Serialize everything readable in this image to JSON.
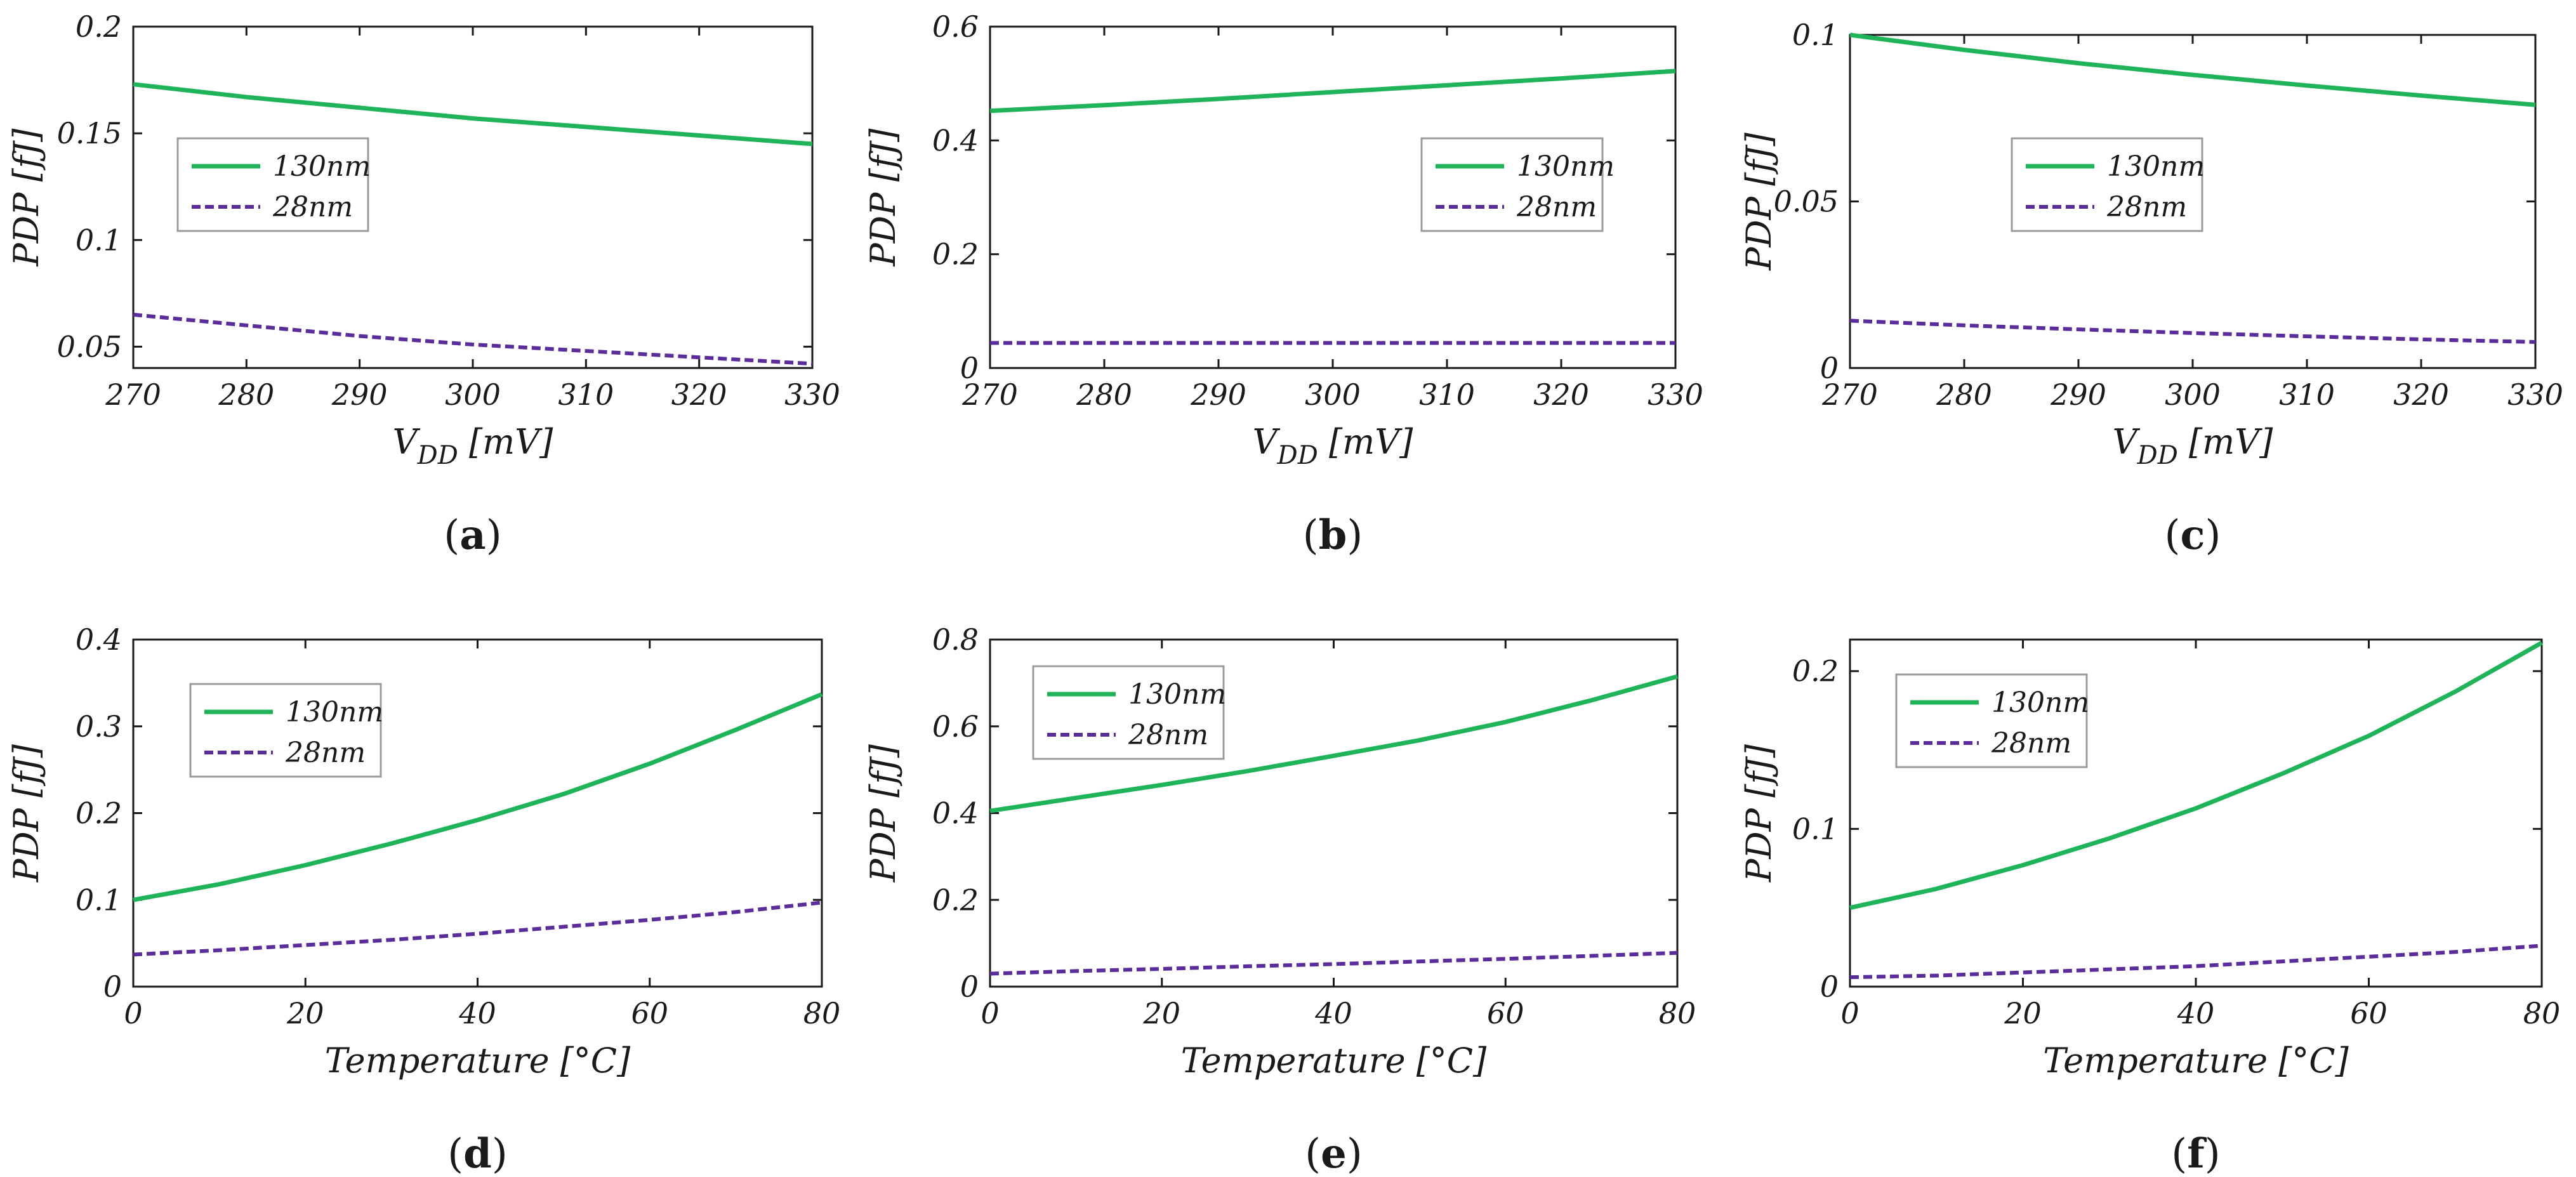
{
  "colors": {
    "series_130nm": "#1fb45a",
    "series_28nm": "#5b2d9b",
    "axis": "#1a1a1a",
    "legend_border": "#9a9a9a"
  },
  "chart_data": [
    {
      "type": "line",
      "caption": "a",
      "xlabel": "V_DD [mV]",
      "ylabel": "PDP [fJ]",
      "xlim": [
        270,
        330
      ],
      "ylim": [
        0.04,
        0.2
      ],
      "xticks": [
        270,
        280,
        290,
        300,
        310,
        320,
        330
      ],
      "yticks": [
        0.05,
        0.1,
        0.15,
        0.2
      ],
      "ytick_labels": [
        "0.05",
        "0.1",
        "0.15",
        "0.2"
      ],
      "legend_position": "upper-left",
      "x": [
        270,
        280,
        290,
        300,
        310,
        320,
        330
      ],
      "series": [
        {
          "name": "130nm",
          "values": [
            0.173,
            0.167,
            0.162,
            0.157,
            0.153,
            0.149,
            0.145
          ]
        },
        {
          "name": "28nm",
          "values": [
            0.065,
            0.06,
            0.055,
            0.051,
            0.048,
            0.045,
            0.042
          ]
        }
      ]
    },
    {
      "type": "line",
      "caption": "b",
      "xlabel": "V_DD [mV]",
      "ylabel": "PDP [fJ]",
      "xlim": [
        270,
        330
      ],
      "ylim": [
        0,
        0.6
      ],
      "xticks": [
        270,
        280,
        290,
        300,
        310,
        320,
        330
      ],
      "yticks": [
        0,
        0.2,
        0.4,
        0.6
      ],
      "ytick_labels": [
        "0",
        "0.2",
        "0.4",
        "0.6"
      ],
      "legend_position": "upper-right",
      "x": [
        270,
        280,
        290,
        300,
        310,
        320,
        330
      ],
      "series": [
        {
          "name": "130nm",
          "values": [
            0.452,
            0.462,
            0.473,
            0.485,
            0.497,
            0.509,
            0.522
          ]
        },
        {
          "name": "28nm",
          "values": [
            0.044,
            0.044,
            0.044,
            0.044,
            0.044,
            0.044,
            0.044
          ]
        }
      ]
    },
    {
      "type": "line",
      "caption": "c",
      "xlabel": "V_DD [mV]",
      "ylabel": "PDP [fJ]",
      "xlim": [
        270,
        330
      ],
      "ylim": [
        0,
        0.1
      ],
      "xticks": [
        270,
        280,
        290,
        300,
        310,
        320,
        330
      ],
      "yticks": [
        0,
        0.05,
        0.1
      ],
      "ytick_labels": [
        "0",
        "0.05",
        "0.1"
      ],
      "legend_position": "upper-center",
      "x": [
        270,
        280,
        290,
        300,
        310,
        320,
        330
      ],
      "series": [
        {
          "name": "130nm",
          "values": [
            0.1,
            0.0955,
            0.0915,
            0.088,
            0.0848,
            0.0818,
            0.079
          ]
        },
        {
          "name": "28nm",
          "values": [
            0.0142,
            0.0128,
            0.0116,
            0.0105,
            0.0095,
            0.0086,
            0.0078
          ]
        }
      ]
    },
    {
      "type": "line",
      "caption": "d",
      "xlabel": "Temperature [°C]",
      "ylabel": "PDP [fJ]",
      "xlim": [
        0,
        80
      ],
      "ylim": [
        0,
        0.4
      ],
      "xticks": [
        0,
        20,
        40,
        60,
        80
      ],
      "yticks": [
        0,
        0.1,
        0.2,
        0.3,
        0.4
      ],
      "ytick_labels": [
        "0",
        "0.1",
        "0.2",
        "0.3",
        "0.4"
      ],
      "legend_position": "upper-left",
      "x": [
        0,
        10,
        20,
        30,
        40,
        50,
        60,
        70,
        80
      ],
      "series": [
        {
          "name": "130nm",
          "values": [
            0.1,
            0.118,
            0.14,
            0.165,
            0.192,
            0.222,
            0.257,
            0.296,
            0.337
          ]
        },
        {
          "name": "28nm",
          "values": [
            0.037,
            0.042,
            0.048,
            0.054,
            0.061,
            0.069,
            0.077,
            0.086,
            0.097
          ]
        }
      ]
    },
    {
      "type": "line",
      "caption": "e",
      "xlabel": "Temperature [°C]",
      "ylabel": "PDP [fJ]",
      "xlim": [
        0,
        80
      ],
      "ylim": [
        0,
        0.8
      ],
      "xticks": [
        0,
        20,
        40,
        60,
        80
      ],
      "yticks": [
        0,
        0.2,
        0.4,
        0.6,
        0.8
      ],
      "ytick_labels": [
        "0",
        "0.2",
        "0.4",
        "0.6",
        "0.8"
      ],
      "legend_position": "upper-left",
      "x": [
        0,
        10,
        20,
        30,
        40,
        50,
        60,
        70,
        80
      ],
      "series": [
        {
          "name": "130nm",
          "values": [
            0.405,
            0.435,
            0.465,
            0.497,
            0.532,
            0.568,
            0.61,
            0.66,
            0.715
          ]
        },
        {
          "name": "28nm",
          "values": [
            0.03,
            0.036,
            0.041,
            0.047,
            0.052,
            0.058,
            0.064,
            0.071,
            0.078
          ]
        }
      ]
    },
    {
      "type": "line",
      "caption": "f",
      "xlabel": "Temperature [°C]",
      "ylabel": "PDP [fJ]",
      "xlim": [
        0,
        80
      ],
      "ylim": [
        0,
        0.22
      ],
      "xticks": [
        0,
        20,
        40,
        60,
        80
      ],
      "yticks": [
        0,
        0.1,
        0.2
      ],
      "ytick_labels": [
        "0",
        "0.1",
        "0.2"
      ],
      "legend_position": "upper-left",
      "x": [
        0,
        10,
        20,
        30,
        40,
        50,
        60,
        70,
        80
      ],
      "series": [
        {
          "name": "130nm",
          "values": [
            0.05,
            0.062,
            0.077,
            0.094,
            0.113,
            0.135,
            0.159,
            0.187,
            0.218
          ]
        },
        {
          "name": "28nm",
          "values": [
            0.006,
            0.007,
            0.009,
            0.011,
            0.013,
            0.016,
            0.019,
            0.022,
            0.026
          ]
        }
      ]
    }
  ]
}
